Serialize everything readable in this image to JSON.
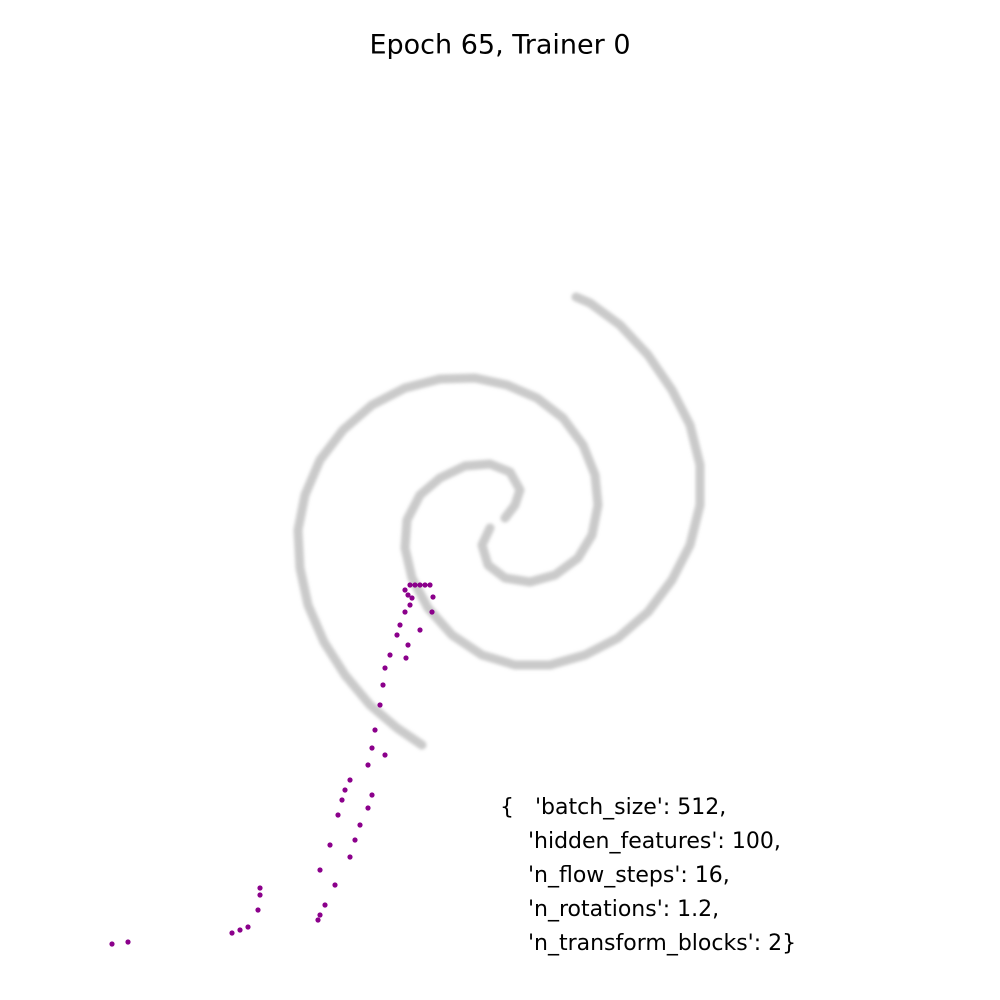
{
  "chart_data": {
    "type": "scatter",
    "title": "Epoch 65, Trainer 0",
    "xlim": [
      -5,
      5
    ],
    "ylim": [
      -4.8,
      5.2
    ],
    "annotation": [
      "{   'batch_size': 512,",
      "    'hidden_features': 100,",
      "    'n_flow_steps': 16,",
      "    'n_rotations': 1.2,",
      "    'n_transform_blocks': 2}"
    ],
    "series": [
      {
        "color": "#9e9e9e",
        "draw": "line",
        "x": [
          0.05,
          0.15,
          0.2,
          0.1,
          -0.1,
          -0.35,
          -0.6,
          -0.8,
          -0.93,
          -0.95,
          -0.88,
          -0.72,
          -0.48,
          -0.18,
          0.15,
          0.5,
          0.85,
          1.18,
          1.48,
          1.72,
          1.9,
          2,
          2,
          1.9,
          1.72,
          1.48,
          1.2,
          0.9,
          0.76
        ],
        "values": [
          0.02,
          0.15,
          0.3,
          0.48,
          0.56,
          0.54,
          0.42,
          0.25,
          0,
          -0.28,
          -0.58,
          -0.88,
          -1.15,
          -1.35,
          -1.45,
          -1.45,
          -1.35,
          -1.18,
          -0.92,
          -0.6,
          -0.25,
          0.15,
          0.55,
          0.95,
          1.3,
          1.65,
          1.95,
          2.17,
          2.23
        ]
      },
      {
        "color": "#9e9e9e",
        "draw": "line",
        "x": [
          -0.1,
          -0.18,
          -0.12,
          0.05,
          0.3,
          0.55,
          0.78,
          0.92,
          0.98,
          0.95,
          0.83,
          0.63,
          0.37,
          0.07,
          -0.25,
          -0.6,
          -0.95,
          -1.28,
          -1.57,
          -1.8,
          -1.95,
          -2.02,
          -2,
          -1.92,
          -1.76,
          -1.55,
          -1.3,
          -1.03,
          -0.78
        ],
        "values": [
          -0.08,
          -0.25,
          -0.45,
          -0.58,
          -0.62,
          -0.55,
          -0.38,
          -0.15,
          0.15,
          0.45,
          0.75,
          1.02,
          1.22,
          1.35,
          1.42,
          1.41,
          1.32,
          1.15,
          0.9,
          0.6,
          0.25,
          -0.1,
          -0.48,
          -0.85,
          -1.22,
          -1.55,
          -1.85,
          -2.08,
          -2.25
        ]
      },
      {
        "color": "#8b008b",
        "draw": "points",
        "x": [
          -0.9,
          -0.85,
          -0.8,
          -0.75,
          -0.7,
          -0.95,
          -0.92,
          -0.88,
          -0.67,
          -0.9,
          -0.95,
          -1,
          -1.03,
          -0.68,
          -0.8,
          -0.92,
          -0.94,
          -1.1,
          -1.15,
          -1.17,
          -1.2,
          -1.25,
          -1.28,
          -1.32,
          -1.15,
          -1.5,
          -1.55,
          -1.58,
          -1.62,
          -1.28,
          -1.32,
          -1.4,
          -1.45,
          -1.5,
          -1.7,
          -1.8,
          -1.65,
          -1.75,
          -1.8,
          -1.82,
          -2.4,
          -2.4,
          -2.42,
          -2.52,
          -2.6,
          -2.68,
          -3.72,
          -3.88
        ],
        "values": [
          -0.65,
          -0.65,
          -0.65,
          -0.65,
          -0.65,
          -0.7,
          -0.75,
          -0.78,
          -0.77,
          -0.85,
          -0.92,
          -1.05,
          -1.15,
          -0.92,
          -1.1,
          -1.25,
          -1.38,
          -1.35,
          -1.48,
          -1.65,
          -1.85,
          -2.1,
          -2.28,
          -2.45,
          -2.35,
          -2.6,
          -2.7,
          -2.8,
          -2.95,
          -2.75,
          -2.88,
          -3.05,
          -3.2,
          -3.37,
          -3.25,
          -3.5,
          -3.65,
          -3.85,
          -3.95,
          -4,
          -3.68,
          -3.75,
          -3.9,
          -4.07,
          -4.1,
          -4.13,
          -4.22,
          -4.24
        ]
      }
    ]
  }
}
